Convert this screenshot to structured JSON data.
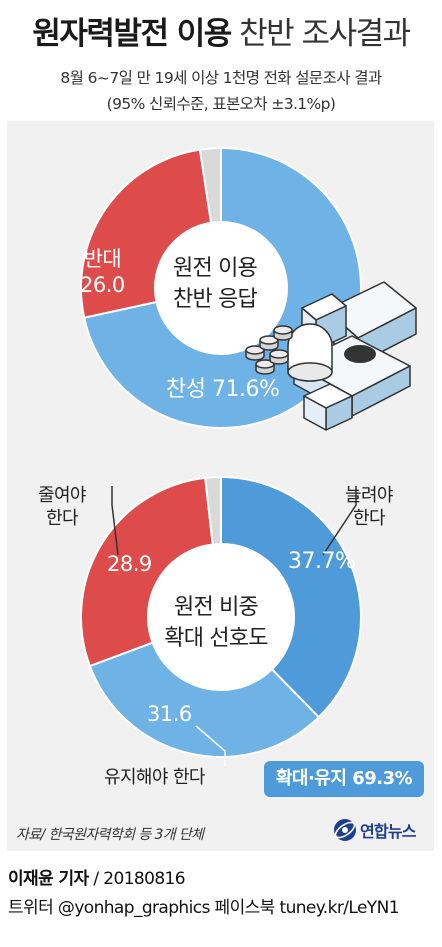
{
  "title": {
    "bold": "원자력발전 이용",
    "light": "찬반 조사결과"
  },
  "subtitle": [
    "8월 6~7일 만 19세 이상 1천명 전화 설문조사 결과",
    "(95% 신뢰수준, 표본오차 ±3.1%p)"
  ],
  "colors": {
    "blue": "#6fb2e6",
    "red": "#dd4b4b",
    "gray": "#d9d9d9",
    "badge": "#4f9ad9",
    "hole": "#ffffff"
  },
  "chart_data": [
    {
      "type": "pie",
      "center_label": [
        "원전 이용",
        "찬반 응답"
      ],
      "slices": [
        {
          "name": "찬성",
          "value": 71.6,
          "label": "찬성 71.6%",
          "color": "#6fb2e6"
        },
        {
          "name": "반대",
          "value": 26.0,
          "label": "반대 26.0",
          "color": "#dd4b4b"
        },
        {
          "name": "기타",
          "value": 2.4,
          "label": "",
          "color": "#d9d9d9"
        }
      ]
    },
    {
      "type": "pie",
      "center_label": [
        "원전 비중",
        "확대 선호도"
      ],
      "slices": [
        {
          "name": "늘려야 한다",
          "value": 37.7,
          "label": "37.7%",
          "color": "#4f9ad9"
        },
        {
          "name": "유지해야 한다",
          "value": 31.6,
          "label": "31.6",
          "color": "#6fb2e6"
        },
        {
          "name": "줄여야 한다",
          "value": 28.9,
          "label": "28.9",
          "color": "#dd4b4b"
        },
        {
          "name": "기타",
          "value": 1.8,
          "label": "",
          "color": "#d9d9d9"
        }
      ],
      "callouts": {
        "increase": [
          "늘려야",
          "한다"
        ],
        "decrease": [
          "줄여야",
          "한다"
        ],
        "maintain": "유지해야 한다"
      },
      "badge": "확대·유지 69.3%"
    }
  ],
  "source": "자료/ 한국원자력학회 등 3개 단체",
  "logo": "연합뉴스",
  "footer": {
    "name": "이재윤 기자",
    "date": " / 20180816",
    "line2": "트위터 @yonhap_graphics  페이스북 tuney.kr/LeYN1"
  }
}
